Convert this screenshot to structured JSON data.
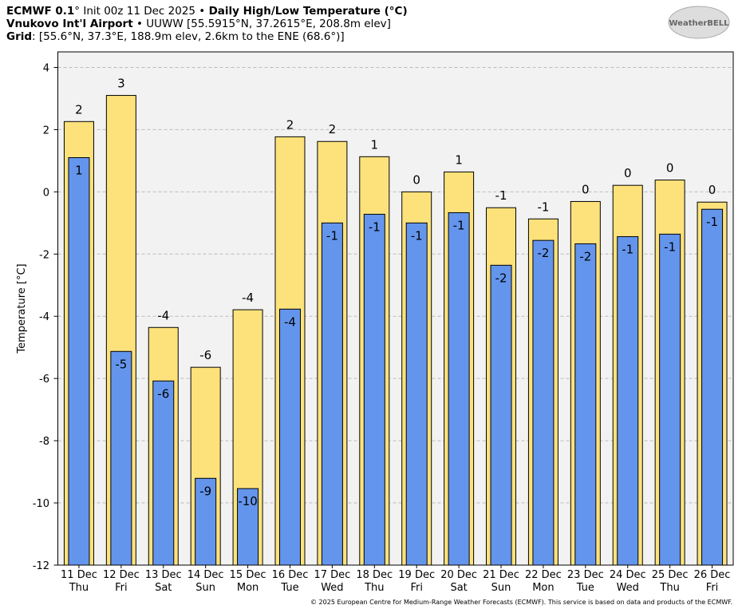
{
  "header": {
    "lines": [
      [
        {
          "text": "ECMWF 0.1",
          "bold": true
        },
        {
          "text": "° Init 00z 11 Dec 2025 • ",
          "bold": false
        },
        {
          "text": "Daily High/Low Temperature (°C)",
          "bold": true
        }
      ],
      [
        {
          "text": "Vnukovo Int'l Airport",
          "bold": true
        },
        {
          "text": " • UUWW [55.5915°N, 37.2615°E, 208.8m elev]",
          "bold": false
        }
      ],
      [
        {
          "text": "Grid",
          "bold": true
        },
        {
          "text": ": [55.6°N, 37.3°E, 188.9m elev, 2.6km to the ENE (68.6°)]",
          "bold": false
        }
      ]
    ]
  },
  "logo": "WeatherBELL",
  "footer": "© 2025 European Centre for Medium-Range Weather Forecasts (ECMWF). This service is based on data and products of the ECMWF.",
  "chart_data": {
    "type": "bar",
    "y_label": "Temperature [°C]",
    "categories": [
      "11 Dec",
      "12 Dec",
      "13 Dec",
      "14 Dec",
      "15 Dec",
      "16 Dec",
      "17 Dec",
      "18 Dec",
      "19 Dec",
      "20 Dec",
      "21 Dec",
      "22 Dec",
      "23 Dec",
      "24 Dec",
      "25 Dec",
      "26 Dec"
    ],
    "category_sublabels": [
      "Thu",
      "Fri",
      "Sat",
      "Sun",
      "Mon",
      "Tue",
      "Wed",
      "Thu",
      "Fri",
      "Sat",
      "Sun",
      "Mon",
      "Tue",
      "Wed",
      "Thu",
      "Fri"
    ],
    "series": [
      {
        "color": "#fde27c",
        "values": [
          2.26,
          3.1,
          -4.36,
          -5.64,
          -3.79,
          1.77,
          1.62,
          1.13,
          0,
          0.64,
          -0.51,
          -0.87,
          -0.31,
          0.21,
          0.38,
          -0.33
        ],
        "value_labels": [
          "2",
          "3",
          "-4",
          "-6",
          "-4",
          "2",
          "2",
          "1",
          "0",
          "1",
          "-1",
          "-1",
          "0",
          "0",
          "0",
          "0"
        ]
      },
      {
        "color": "#6495ed",
        "values": [
          1.1,
          -5.13,
          -6.08,
          -9.21,
          -9.54,
          -3.77,
          -1.0,
          -0.72,
          -1.0,
          -0.67,
          -2.36,
          -1.56,
          -1.67,
          -1.44,
          -1.36,
          -0.56
        ],
        "value_labels": [
          "1",
          "-5",
          "-6",
          "-9",
          "-10",
          "-4",
          "-1",
          "-1",
          "-1",
          "-1",
          "-2",
          "-2",
          "-2",
          "-1",
          "-1",
          "-1"
        ]
      }
    ],
    "ylim": [
      -12,
      4.5
    ],
    "yticks": [
      -12,
      -10,
      -8,
      -6,
      -4,
      -2,
      0,
      2,
      4
    ],
    "grid": true
  }
}
